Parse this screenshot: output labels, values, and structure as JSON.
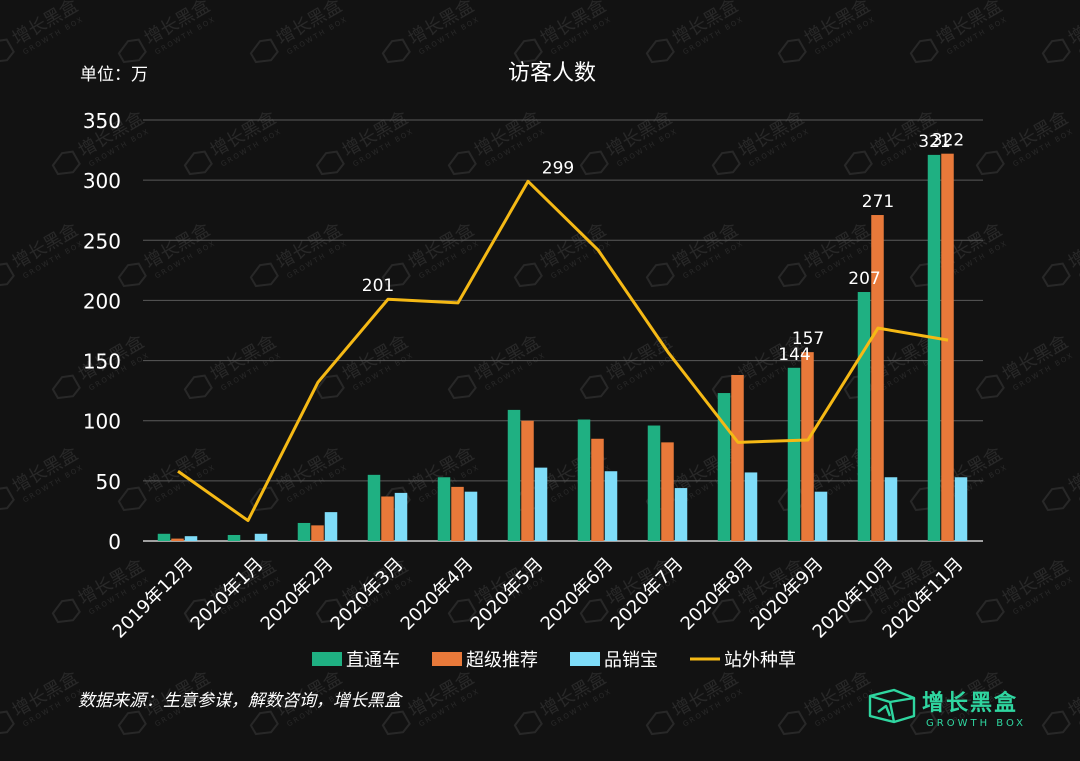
{
  "chart_data": {
    "type": "bar",
    "title": "访客人数",
    "unit_label": "单位：万",
    "ylim": [
      0,
      350
    ],
    "yticks": [
      0,
      50,
      100,
      150,
      200,
      250,
      300,
      350
    ],
    "grid": true,
    "legend_position": "bottom",
    "categories": [
      "2019年12月",
      "2020年1月",
      "2020年2月",
      "2020年3月",
      "2020年4月",
      "2020年5月",
      "2020年6月",
      "2020年7月",
      "2020年8月",
      "2020年9月",
      "2020年10月",
      "2020年11月"
    ],
    "series": [
      {
        "name": "直通车",
        "type": "bar",
        "color": "#1fb082",
        "values": [
          6,
          5,
          15,
          55,
          53,
          109,
          101,
          96,
          123,
          144,
          207,
          321
        ],
        "labels": [
          "",
          "",
          "",
          "",
          "",
          "",
          "",
          "",
          "",
          "144",
          "207",
          "321"
        ]
      },
      {
        "name": "超级推荐",
        "type": "bar",
        "color": "#e8793a",
        "values": [
          2,
          0,
          13,
          37,
          45,
          100,
          85,
          82,
          138,
          157,
          271,
          322
        ],
        "labels": [
          "",
          "",
          "",
          "",
          "",
          "",
          "",
          "",
          "",
          "157",
          "271",
          "322"
        ]
      },
      {
        "name": "品销宝",
        "type": "bar",
        "color": "#7fdcf8",
        "values": [
          4,
          6,
          24,
          40,
          41,
          61,
          58,
          44,
          57,
          41,
          53,
          53
        ],
        "labels": [
          "",
          "",
          "",
          "",
          "",
          "",
          "",
          "",
          "",
          "",
          "",
          ""
        ]
      },
      {
        "name": "站外种草",
        "type": "line",
        "color": "#f5b915",
        "values": [
          58,
          17,
          132,
          201,
          198,
          299,
          242,
          157,
          82,
          84,
          177,
          167
        ],
        "labels": [
          "",
          "",
          "",
          "201",
          "",
          "299",
          "",
          "",
          "",
          "",
          "",
          ""
        ]
      }
    ]
  },
  "source_text": "数据来源：生意参谋，解数咨询，增长黑盒",
  "brand": {
    "cn": "增长黑盒",
    "en": "GROWTH BOX",
    "color": "#2fd6a0"
  },
  "watermark": {
    "cn": "增长黑盒",
    "en": "GROWTH BOX"
  }
}
